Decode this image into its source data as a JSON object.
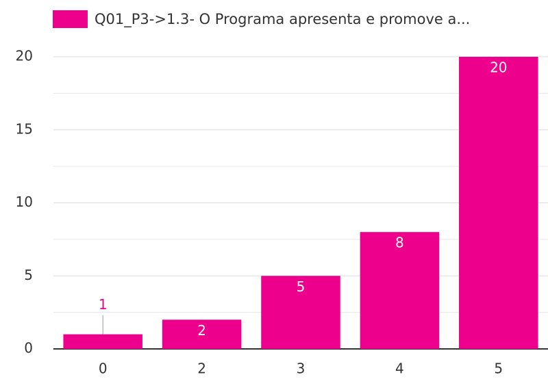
{
  "chart_data": {
    "type": "bar",
    "categories": [
      "0",
      "2",
      "3",
      "4",
      "5"
    ],
    "series": [
      {
        "name": "Q01_P3->1.3- O Programa apresenta e promove a...",
        "color": "#ec008c",
        "values": [
          1,
          2,
          5,
          8,
          20
        ]
      }
    ],
    "ylim": [
      0,
      20
    ],
    "yticks": [
      0,
      5,
      10,
      15,
      20
    ],
    "minor_yticks": [
      2.5,
      7.5,
      12.5,
      17.5
    ],
    "grid": true,
    "legend": "top"
  }
}
